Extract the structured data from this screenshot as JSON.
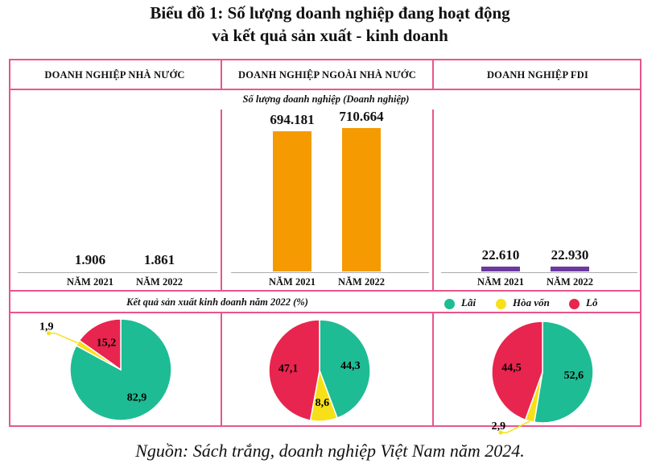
{
  "title_line1": "Biểu đồ 1: Số lượng doanh nghiệp đang hoạt động",
  "title_line2": "và kết quả sản xuất - kinh doanh",
  "columns": [
    "DOANH NGHIỆP NHÀ NƯỚC",
    "DOANH NGHIỆP NGOÀI NHÀ NƯỚC",
    "DOANH NGHIỆP FDI"
  ],
  "bar_section_label": "Số lượng doanh nghiệp (Doanh nghiệp)",
  "pie_section_label": "Kết quả sản xuất kinh doanh năm 2022 (%)",
  "source": "Nguồn: Sách trắng, doanh nghiệp Việt Nam năm 2024.",
  "colors": {
    "border": "#e8558c",
    "lai": "#1ebc94",
    "hoa_von": "#f7e017",
    "lo": "#e8254e",
    "bar_ngoai": "#f59a00",
    "bar_fdi": "#6a3aa0"
  },
  "chart_data": [
    {
      "type": "bar",
      "title": "DOANH NGHIỆP NHÀ NƯỚC",
      "categories": [
        "NĂM 2021",
        "NĂM 2022"
      ],
      "values": [
        1906,
        1861
      ],
      "value_labels": [
        "1.906",
        "1.861"
      ],
      "ylim": [
        0,
        720000
      ]
    },
    {
      "type": "bar",
      "title": "DOANH NGHIỆP NGOÀI NHÀ NƯỚC",
      "categories": [
        "NĂM 2021",
        "NĂM 2022"
      ],
      "values": [
        694181,
        710664
      ],
      "value_labels": [
        "694.181",
        "710.664"
      ],
      "ylim": [
        0,
        720000
      ]
    },
    {
      "type": "bar",
      "title": "DOANH NGHIỆP FDI",
      "categories": [
        "NĂM 2021",
        "NĂM 2022"
      ],
      "values": [
        22610,
        22930
      ],
      "value_labels": [
        "22.610",
        "22.930"
      ],
      "ylim": [
        0,
        720000
      ]
    },
    {
      "type": "pie",
      "title": "DOANH NGHIỆP NHÀ NƯỚC",
      "legend": [
        "Lãi",
        "Hòa vốn",
        "Lỗ"
      ],
      "values": [
        82.9,
        1.9,
        15.2
      ],
      "value_labels": [
        "82,9",
        "1,9",
        "15,2"
      ]
    },
    {
      "type": "pie",
      "title": "DOANH NGHIỆP NGOÀI NHÀ NƯỚC",
      "legend": [
        "Lãi",
        "Hòa vốn",
        "Lỗ"
      ],
      "values": [
        44.3,
        8.6,
        47.1
      ],
      "value_labels": [
        "44,3",
        "8,6",
        "47,1"
      ]
    },
    {
      "type": "pie",
      "title": "DOANH NGHIỆP FDI",
      "legend": [
        "Lãi",
        "Hòa vốn",
        "Lỗ"
      ],
      "values": [
        52.6,
        2.9,
        44.5
      ],
      "value_labels": [
        "52,6",
        "2,9",
        "44,5"
      ]
    }
  ]
}
